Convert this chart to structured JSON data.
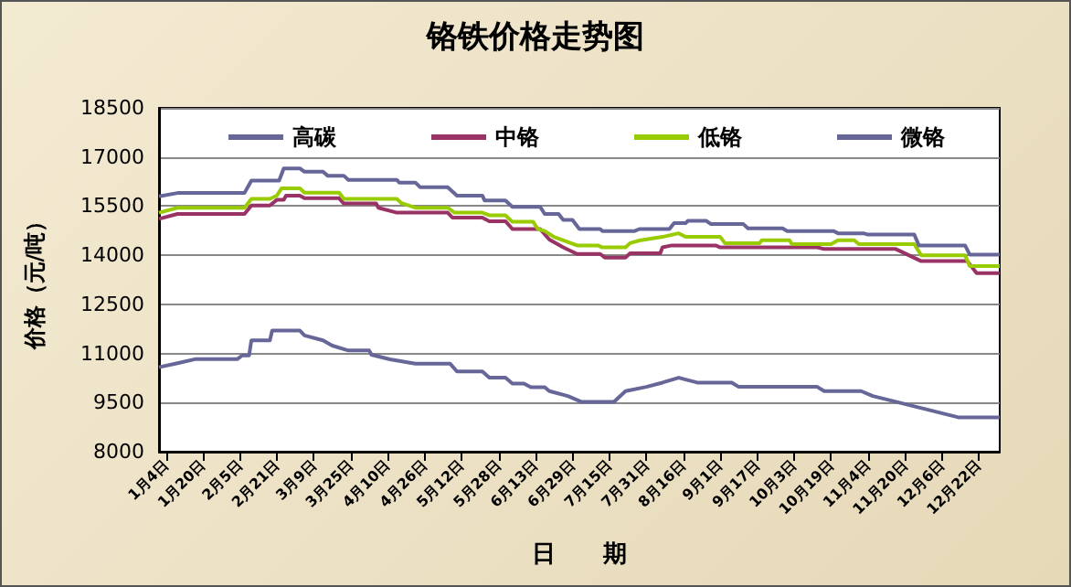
{
  "chart_data": {
    "type": "line",
    "title": "铬铁价格走势图",
    "xlabel": "日　　期",
    "ylabel": "价格（元/吨）",
    "ylim": [
      8000,
      18500
    ],
    "yticks": [
      8000,
      9500,
      11000,
      12500,
      14000,
      15500,
      17000,
      18500
    ],
    "xlim": [
      "--01-01",
      "--12-31"
    ],
    "xticks": [
      {
        "value": "--01-04",
        "label": "1月4日"
      },
      {
        "value": "--01-20",
        "label": "1月20日"
      },
      {
        "value": "--02-05",
        "label": "2月5日"
      },
      {
        "value": "--02-21",
        "label": "2月21日"
      },
      {
        "value": "--03-09",
        "label": "3月9日"
      },
      {
        "value": "--03-25",
        "label": "3月25日"
      },
      {
        "value": "--04-10",
        "label": "4月10日"
      },
      {
        "value": "--04-26",
        "label": "4月26日"
      },
      {
        "value": "--05-12",
        "label": "5月12日"
      },
      {
        "value": "--05-28",
        "label": "5月28日"
      },
      {
        "value": "--06-13",
        "label": "6月13日"
      },
      {
        "value": "--06-29",
        "label": "6月29日"
      },
      {
        "value": "--07-15",
        "label": "7月15日"
      },
      {
        "value": "--07-31",
        "label": "7月31日"
      },
      {
        "value": "--08-16",
        "label": "8月16日"
      },
      {
        "value": "--09-01",
        "label": "9月1日"
      },
      {
        "value": "--09-17",
        "label": "9月17日"
      },
      {
        "value": "--10-03",
        "label": "10月3日"
      },
      {
        "value": "--10-19",
        "label": "10月19日"
      },
      {
        "value": "--11-04",
        "label": "11月4日"
      },
      {
        "value": "--11-20",
        "label": "11月20日"
      },
      {
        "value": "--12-06",
        "label": "12月6日"
      },
      {
        "value": "--12-22",
        "label": "12月22日"
      }
    ],
    "grid": "y",
    "legend": "top",
    "marker": "none",
    "line_style": "solid",
    "series": [
      {
        "name": "高碳",
        "color": "#666699",
        "x": [
          "--01-01",
          "--01-09",
          "--01-17",
          "--02-04",
          "--02-06",
          "--02-09",
          "--02-10",
          "--02-18",
          "--02-19",
          "--03-03",
          "--03-05",
          "--03-13",
          "--03-17",
          "--03-24",
          "--04-02",
          "--04-03",
          "--04-11",
          "--04-22",
          "--05-07",
          "--05-10",
          "--05-21",
          "--05-24",
          "--05-31",
          "--06-03",
          "--06-08",
          "--06-11",
          "--06-17",
          "--06-19",
          "--06-27",
          "--07-03",
          "--07-17",
          "--07-22",
          "--07-31",
          "--08-07",
          "--08-14",
          "--08-22",
          "--09-06",
          "--09-09",
          "--10-13",
          "--10-16",
          "--11-01",
          "--11-06",
          "--12-13",
          "--12-31"
        ],
        "values": [
          10580,
          10700,
          10830,
          10830,
          10940,
          10940,
          11400,
          11400,
          11700,
          11700,
          11550,
          11400,
          11240,
          11090,
          11090,
          10960,
          10820,
          10690,
          10690,
          10450,
          10450,
          10260,
          10260,
          10080,
          10080,
          9970,
          9970,
          9850,
          9700,
          9520,
          9520,
          9850,
          9980,
          10110,
          10260,
          10110,
          10110,
          9980,
          9980,
          9850,
          9850,
          9700,
          9050,
          9050
        ]
      },
      {
        "name": "中铬",
        "color": "#993366",
        "x": [
          "--01-01",
          "--01-09",
          "--02-07",
          "--02-10",
          "--02-18",
          "--02-21",
          "--02-24",
          "--02-25",
          "--03-03",
          "--03-05",
          "--03-20",
          "--03-22",
          "--04-05",
          "--04-06",
          "--04-14",
          "--05-06",
          "--05-08",
          "--05-21",
          "--05-24",
          "--05-31",
          "--06-03",
          "--06-15",
          "--06-19",
          "--06-25",
          "--07-01",
          "--07-11",
          "--07-13",
          "--07-22",
          "--07-24",
          "--08-06",
          "--08-07",
          "--08-11",
          "--08-30",
          "--09-01",
          "--10-13",
          "--10-16",
          "--11-16",
          "--11-27",
          "--12-17",
          "--12-21",
          "--12-31"
        ],
        "values": [
          15110,
          15260,
          15260,
          15520,
          15520,
          15690,
          15690,
          15820,
          15820,
          15740,
          15740,
          15580,
          15580,
          15450,
          15300,
          15300,
          15150,
          15150,
          15040,
          15040,
          14800,
          14800,
          14480,
          14240,
          14040,
          14040,
          13930,
          13930,
          14060,
          14060,
          14240,
          14300,
          14300,
          14240,
          14240,
          14190,
          14190,
          13820,
          13820,
          13450,
          13450
        ]
      },
      {
        "name": "低铬",
        "color": "#99cc00",
        "x": [
          "--01-01",
          "--01-09",
          "--02-07",
          "--02-10",
          "--02-18",
          "--02-21",
          "--02-23",
          "--03-03",
          "--03-05",
          "--03-20",
          "--03-22",
          "--04-14",
          "--04-16",
          "--04-22",
          "--05-06",
          "--05-09",
          "--05-21",
          "--05-24",
          "--05-31",
          "--06-03",
          "--06-12",
          "--06-14",
          "--06-17",
          "--06-21",
          "--07-01",
          "--07-10",
          "--07-12",
          "--07-22",
          "--07-24",
          "--07-28",
          "--08-07",
          "--08-14",
          "--08-17",
          "--09-01",
          "--09-03",
          "--09-18",
          "--09-19",
          "--10-01",
          "--10-02",
          "--10-19",
          "--10-22",
          "--10-29",
          "--10-31",
          "--11-24",
          "--11-27",
          "--12-16",
          "--12-18",
          "--12-31"
        ],
        "values": [
          15300,
          15450,
          15450,
          15720,
          15720,
          15820,
          16040,
          16040,
          15910,
          15910,
          15720,
          15720,
          15590,
          15450,
          15450,
          15300,
          15300,
          15220,
          15220,
          15020,
          15020,
          14800,
          14740,
          14560,
          14300,
          14300,
          14240,
          14240,
          14370,
          14450,
          14560,
          14670,
          14560,
          14560,
          14370,
          14370,
          14460,
          14460,
          14340,
          14340,
          14460,
          14460,
          14340,
          14340,
          14000,
          14000,
          13670,
          13670
        ]
      },
      {
        "name": "微铬",
        "color": "#666699",
        "x": [
          "--01-01",
          "--01-09",
          "--02-07",
          "--02-10",
          "--02-22",
          "--02-24",
          "--03-03",
          "--03-05",
          "--03-13",
          "--03-15",
          "--03-22",
          "--03-24",
          "--04-14",
          "--04-15",
          "--04-22",
          "--04-24",
          "--05-06",
          "--05-10",
          "--05-21",
          "--05-22",
          "--05-31",
          "--06-03",
          "--06-15",
          "--06-17",
          "--06-23",
          "--06-25",
          "--06-29",
          "--07-02",
          "--07-11",
          "--07-12",
          "--07-26",
          "--07-28",
          "--08-10",
          "--08-12",
          "--08-17",
          "--08-18",
          "--08-26",
          "--08-28",
          "--09-11",
          "--09-13",
          "--09-28",
          "--09-30",
          "--10-20",
          "--10-22",
          "--11-02",
          "--11-04",
          "--11-24",
          "--11-26",
          "--12-16",
          "--12-18",
          "--12-31"
        ],
        "values": [
          15800,
          15900,
          15900,
          16280,
          16280,
          16650,
          16650,
          16550,
          16550,
          16430,
          16430,
          16300,
          16300,
          16220,
          16220,
          16080,
          16080,
          15820,
          15820,
          15670,
          15670,
          15480,
          15480,
          15260,
          15260,
          15080,
          15080,
          14800,
          14800,
          14740,
          14740,
          14800,
          14800,
          14980,
          14980,
          15050,
          15050,
          14950,
          14950,
          14820,
          14820,
          14740,
          14740,
          14670,
          14670,
          14630,
          14630,
          14300,
          14300,
          14020,
          14020
        ]
      }
    ]
  }
}
